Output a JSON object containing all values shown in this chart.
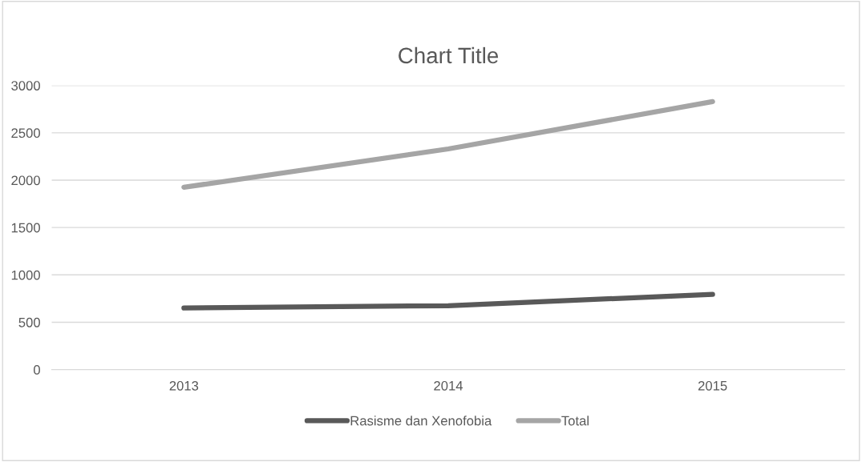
{
  "chart_data": {
    "type": "line",
    "title": "Chart Title",
    "categories": [
      "2013",
      "2014",
      "2015"
    ],
    "series": [
      {
        "name": "Rasisme dan Xenofobia",
        "color": "#595959",
        "values": [
          650,
          675,
          795
        ]
      },
      {
        "name": "Total",
        "color": "#a5a5a5",
        "values": [
          1925,
          2330,
          2830
        ]
      }
    ],
    "ylim": [
      0,
      3000
    ],
    "yticks": [
      0,
      500,
      1000,
      1500,
      2000,
      2500,
      3000
    ],
    "grid": "y",
    "legend": "bottom",
    "marker": "none",
    "line_style": "solid"
  }
}
